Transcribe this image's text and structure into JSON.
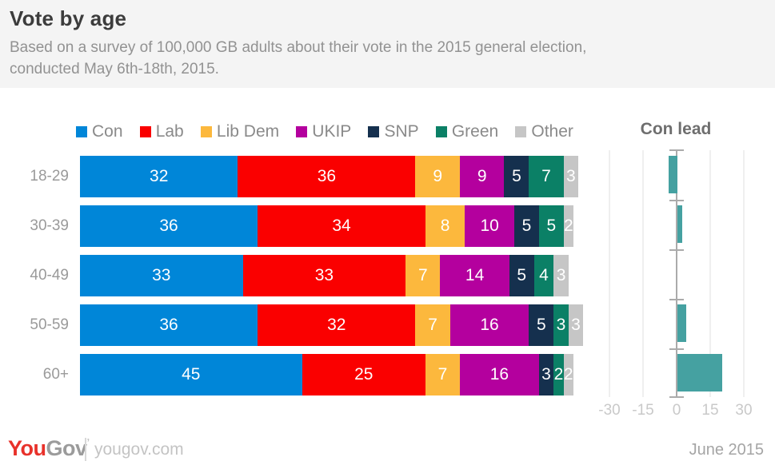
{
  "header": {
    "title": "Vote by age",
    "subtitle_line1": "Based on a survey of 100,000 GB adults about their vote in the 2015 general election,",
    "subtitle_line2": "conducted May 6th-18th, 2015."
  },
  "colors": {
    "header_bg": "#F4F4F4",
    "con": "#0086D8",
    "lab": "#FA0000",
    "lib_dem": "#FCB83D",
    "ukip": "#B4009E",
    "snp": "#15304E",
    "green": "#0B8066",
    "other": "#C6C6C6",
    "con_lead_bar": "#45A1A1"
  },
  "chart_data": {
    "type": "bar",
    "orientation": "horizontal",
    "stacked": true,
    "title": "Vote by age",
    "categories": [
      "18-29",
      "30-39",
      "40-49",
      "50-59",
      "60+"
    ],
    "series": [
      {
        "name": "Con",
        "color": "#0086D8",
        "values": [
          32,
          36,
          33,
          36,
          45
        ]
      },
      {
        "name": "Lab",
        "color": "#FA0000",
        "values": [
          36,
          34,
          33,
          32,
          25
        ]
      },
      {
        "name": "Lib Dem",
        "color": "#FCB83D",
        "values": [
          9,
          8,
          7,
          7,
          7
        ]
      },
      {
        "name": "UKIP",
        "color": "#B4009E",
        "values": [
          9,
          10,
          14,
          16,
          16
        ]
      },
      {
        "name": "SNP",
        "color": "#15304E",
        "values": [
          5,
          5,
          5,
          5,
          3
        ]
      },
      {
        "name": "Green",
        "color": "#0B8066",
        "values": [
          7,
          5,
          4,
          3,
          2
        ]
      },
      {
        "name": "Other",
        "color": "#C6C6C6",
        "values": [
          3,
          2,
          3,
          3,
          2
        ]
      }
    ],
    "value_labels_shown": true,
    "legend_position": "top"
  },
  "con_lead": {
    "title": "Con lead",
    "type": "bar",
    "categories": [
      "18-29",
      "30-39",
      "40-49",
      "50-59",
      "60+"
    ],
    "values": [
      -4,
      2,
      0,
      4,
      20
    ],
    "axis_ticks": [
      -30,
      -15,
      0,
      15,
      30
    ],
    "xlim": [
      -37,
      37
    ],
    "grid": true
  },
  "footer": {
    "logo_you": "You",
    "logo_gov": "Gov",
    "logo_mark": "’",
    "site": "yougov.com",
    "date": "June 2015"
  }
}
